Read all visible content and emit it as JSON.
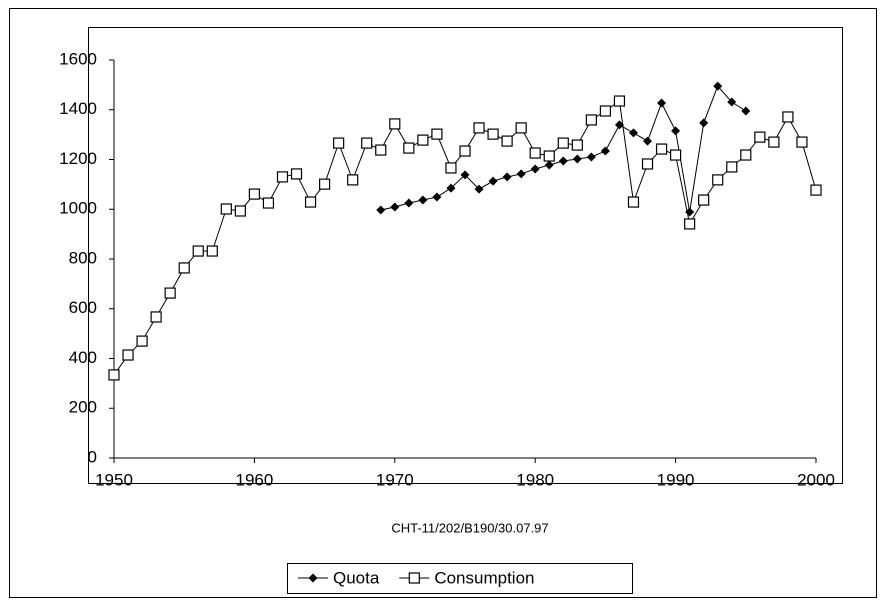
{
  "chart_data": {
    "type": "line",
    "subtitle": "CHT-11/202/B190/30.07.97",
    "x": [
      1950,
      1951,
      1952,
      1953,
      1954,
      1955,
      1956,
      1957,
      1958,
      1959,
      1960,
      1961,
      1962,
      1963,
      1964,
      1965,
      1966,
      1967,
      1968,
      1969,
      1970,
      1971,
      1972,
      1973,
      1974,
      1975,
      1976,
      1977,
      1978,
      1979,
      1980,
      1981,
      1982,
      1983,
      1984,
      1985,
      1986,
      1987,
      1988,
      1989,
      1990,
      1991,
      1992,
      1993,
      1994,
      1995,
      1996,
      1997,
      1998,
      1999,
      2000
    ],
    "series": [
      {
        "name": "Quota",
        "color": "#000000",
        "marker": "diamond",
        "values": [
          null,
          null,
          null,
          null,
          null,
          null,
          null,
          null,
          null,
          null,
          null,
          null,
          null,
          null,
          null,
          null,
          null,
          null,
          null,
          997,
          1009,
          1025,
          1037,
          1049,
          1085,
          1138,
          1081,
          1113,
          1130,
          1142,
          1162,
          1178,
          1194,
          1202,
          1210,
          1234,
          1339,
          1307,
          1274,
          1427,
          1315,
          989,
          1347,
          1495,
          1431,
          1395,
          null,
          null,
          null,
          null,
          null
        ]
      },
      {
        "name": "Consumption",
        "color": "#000000",
        "marker": "square",
        "values": [
          334,
          414,
          470,
          567,
          663,
          764,
          832,
          832,
          1001,
          993,
          1061,
          1025,
          1130,
          1142,
          1029,
          1101,
          1266,
          1118,
          1266,
          1238,
          1343,
          1246,
          1278,
          1302,
          1166,
          1234,
          1327,
          1302,
          1274,
          1327,
          1226,
          1214,
          1266,
          1258,
          1359,
          1395,
          1435,
          1029,
          1182,
          1242,
          1218,
          941,
          1037,
          1118,
          1170,
          1218,
          1290,
          1270,
          1371,
          1270,
          1077
        ]
      }
    ],
    "xlim": [
      1950,
      2000
    ],
    "xticks": [
      1950,
      1960,
      1970,
      1980,
      1990,
      2000
    ],
    "ylim": [
      0,
      1600
    ],
    "yticks": [
      0,
      200,
      400,
      600,
      800,
      1000,
      1200,
      1400,
      1600
    ],
    "legend": "bottom"
  }
}
